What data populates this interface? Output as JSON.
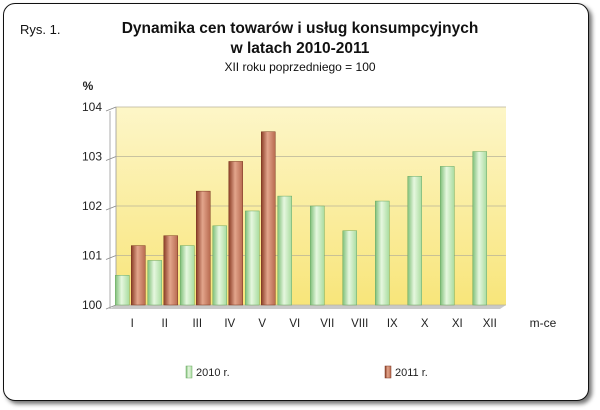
{
  "figure_label": "Rys. 1.",
  "title_line1": "Dynamika cen towarów i usług konsumpcyjnych",
  "title_line2": "w latach 2010-2011",
  "subtitle": "XII roku poprzedniego = 100",
  "colors": {
    "series_2010": "#a9dca0",
    "series_2011": "#b86a4f",
    "plot_bg_top": "#fdf6c8",
    "plot_bg_bottom": "#f8e57a"
  },
  "chart_data": {
    "type": "bar",
    "ylabel": "%",
    "xlabel": "m-ce",
    "ylim": [
      100,
      104
    ],
    "yticks": [
      100,
      101,
      102,
      103,
      104
    ],
    "categories": [
      "I",
      "II",
      "III",
      "IV",
      "V",
      "VI",
      "VII",
      "VIII",
      "IX",
      "X",
      "XI",
      "XII"
    ],
    "series": [
      {
        "name": "2010 r.",
        "values": [
          100.6,
          100.9,
          101.2,
          101.6,
          101.9,
          102.2,
          102.0,
          101.5,
          102.1,
          102.6,
          102.8,
          103.1
        ]
      },
      {
        "name": "2011 r.",
        "values": [
          101.2,
          101.4,
          102.3,
          102.9,
          103.5,
          null,
          null,
          null,
          null,
          null,
          null,
          null
        ]
      }
    ],
    "grid": true,
    "legend_position": "bottom"
  }
}
